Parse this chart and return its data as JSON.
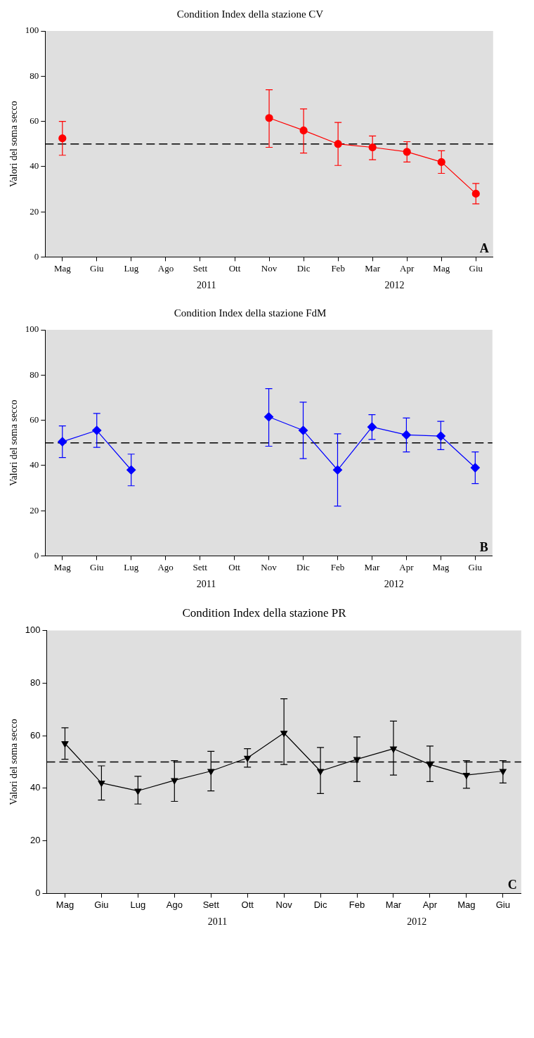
{
  "chart_data": [
    {
      "type": "line",
      "title": "Condition Index della stazione CV",
      "ylabel": "Valori del soma secco",
      "categories": [
        "Mag",
        "Giu",
        "Lug",
        "Ago",
        "Sett",
        "Ott",
        "Nov",
        "Dic",
        "Feb",
        "Mar",
        "Apr",
        "Mag",
        "Giu"
      ],
      "series": [
        {
          "color": "#ff0000",
          "values": [
            52.5,
            null,
            null,
            null,
            null,
            null,
            61.5,
            56,
            50,
            48.5,
            46.5,
            42,
            28
          ],
          "errors": [
            [
              45,
              60
            ],
            null,
            null,
            null,
            null,
            null,
            [
              48.5,
              74
            ],
            [
              46,
              65.5
            ],
            [
              40.5,
              59.5
            ],
            [
              43,
              53.5
            ],
            [
              42,
              51
            ],
            [
              37,
              47
            ],
            [
              23.5,
              32.5
            ]
          ]
        }
      ],
      "ylim": [
        0,
        100
      ],
      "yticks": [
        0,
        20,
        40,
        60,
        80,
        100
      ],
      "marker": "circle",
      "grid": false,
      "legend": false,
      "ref_lines": [
        {
          "axis": "y",
          "value": 50,
          "color": "#000000",
          "line_style": "dashed"
        }
      ],
      "annotations": [
        "A",
        "2011",
        "2012"
      ]
    },
    {
      "type": "line",
      "title": "Condition Index della stazione FdM",
      "ylabel": "Valori del soma secco",
      "categories": [
        "Mag",
        "Giu",
        "Lug",
        "Ago",
        "Sett",
        "Ott",
        "Nov",
        "Dic",
        "Feb",
        "Mar",
        "Apr",
        "Mag",
        "Giu"
      ],
      "series": [
        {
          "color": "#0000ff",
          "values": [
            50.5,
            55.5,
            38,
            null,
            null,
            null,
            61.5,
            55.5,
            38,
            57,
            53.5,
            53,
            39
          ],
          "errors": [
            [
              43.5,
              57.5
            ],
            [
              48,
              63
            ],
            [
              31,
              45
            ],
            null,
            null,
            null,
            [
              48.5,
              74
            ],
            [
              43,
              68
            ],
            [
              22,
              54
            ],
            [
              51.5,
              62.5
            ],
            [
              46,
              61
            ],
            [
              47,
              59.5
            ],
            [
              32,
              46
            ]
          ]
        }
      ],
      "ylim": [
        0,
        100
      ],
      "yticks": [
        0,
        20,
        40,
        60,
        80,
        100
      ],
      "marker": "diamond",
      "grid": false,
      "legend": false,
      "ref_lines": [
        {
          "axis": "y",
          "value": 50,
          "color": "#000000",
          "line_style": "dashed"
        }
      ],
      "annotations": [
        "B",
        "2011",
        "2012"
      ]
    },
    {
      "type": "line",
      "title": "Condition Index della stazione PR",
      "ylabel": "Valori del soma secco",
      "categories": [
        "Mag",
        "Giu",
        "Lug",
        "Ago",
        "Sett",
        "Ott",
        "Nov",
        "Dic",
        "Feb",
        "Mar",
        "Apr",
        "Mag",
        "Giu"
      ],
      "series": [
        {
          "color": "#000000",
          "values": [
            57,
            42,
            39,
            43,
            46.5,
            51.5,
            61,
            46.5,
            51,
            55,
            49,
            45,
            46.5
          ],
          "errors": [
            [
              51,
              63
            ],
            [
              35.5,
              48.5
            ],
            [
              34,
              44.5
            ],
            [
              35,
              50.5
            ],
            [
              39,
              54
            ],
            [
              48,
              55
            ],
            [
              49,
              74
            ],
            [
              38,
              55.5
            ],
            [
              42.5,
              59.5
            ],
            [
              45,
              65.5
            ],
            [
              42.5,
              56
            ],
            [
              40,
              50.5
            ],
            [
              42,
              50.5
            ]
          ]
        }
      ],
      "ylim": [
        0,
        100
      ],
      "yticks": [
        0,
        20,
        40,
        60,
        80,
        100
      ],
      "marker": "triangle",
      "grid": false,
      "legend": false,
      "ref_lines": [
        {
          "axis": "y",
          "value": 50,
          "color": "#000000",
          "line_style": "dashed"
        }
      ],
      "annotations": [
        "C",
        "2011",
        "2012"
      ]
    }
  ]
}
